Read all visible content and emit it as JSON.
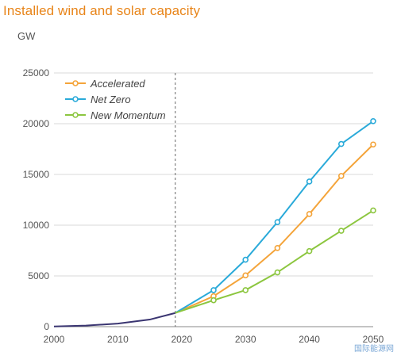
{
  "title": "Installed wind and solar capacity",
  "watermark": "国际能源网",
  "chart_data": {
    "type": "line",
    "ylabel": "GW",
    "xlim": [
      2000,
      2050
    ],
    "ylim": [
      0,
      25000
    ],
    "xticks": [
      2000,
      2010,
      2020,
      2030,
      2040,
      2050
    ],
    "yticks": [
      0,
      5000,
      10000,
      15000,
      20000,
      25000
    ],
    "divider_year": 2019,
    "grid": "horizontal",
    "legend_position": "top-left",
    "history": {
      "color": "#3a3571",
      "x": [
        2000,
        2005,
        2010,
        2015,
        2019
      ],
      "values": [
        20,
        110,
        300,
        700,
        1350
      ]
    },
    "series": [
      {
        "name": "Accelerated",
        "color": "#f4a43a",
        "x": [
          2019,
          2025,
          2030,
          2035,
          2040,
          2045,
          2050
        ],
        "values": [
          1350,
          3000,
          5050,
          7750,
          11100,
          14850,
          17950
        ]
      },
      {
        "name": "Net Zero",
        "color": "#2aaad9",
        "x": [
          2019,
          2025,
          2030,
          2035,
          2040,
          2045,
          2050
        ],
        "values": [
          1350,
          3600,
          6600,
          10300,
          14300,
          18000,
          20250
        ]
      },
      {
        "name": "New Momentum",
        "color": "#8cc63f",
        "x": [
          2019,
          2025,
          2030,
          2035,
          2040,
          2045,
          2050
        ],
        "values": [
          1350,
          2600,
          3600,
          5350,
          7450,
          9450,
          11450
        ]
      }
    ]
  }
}
